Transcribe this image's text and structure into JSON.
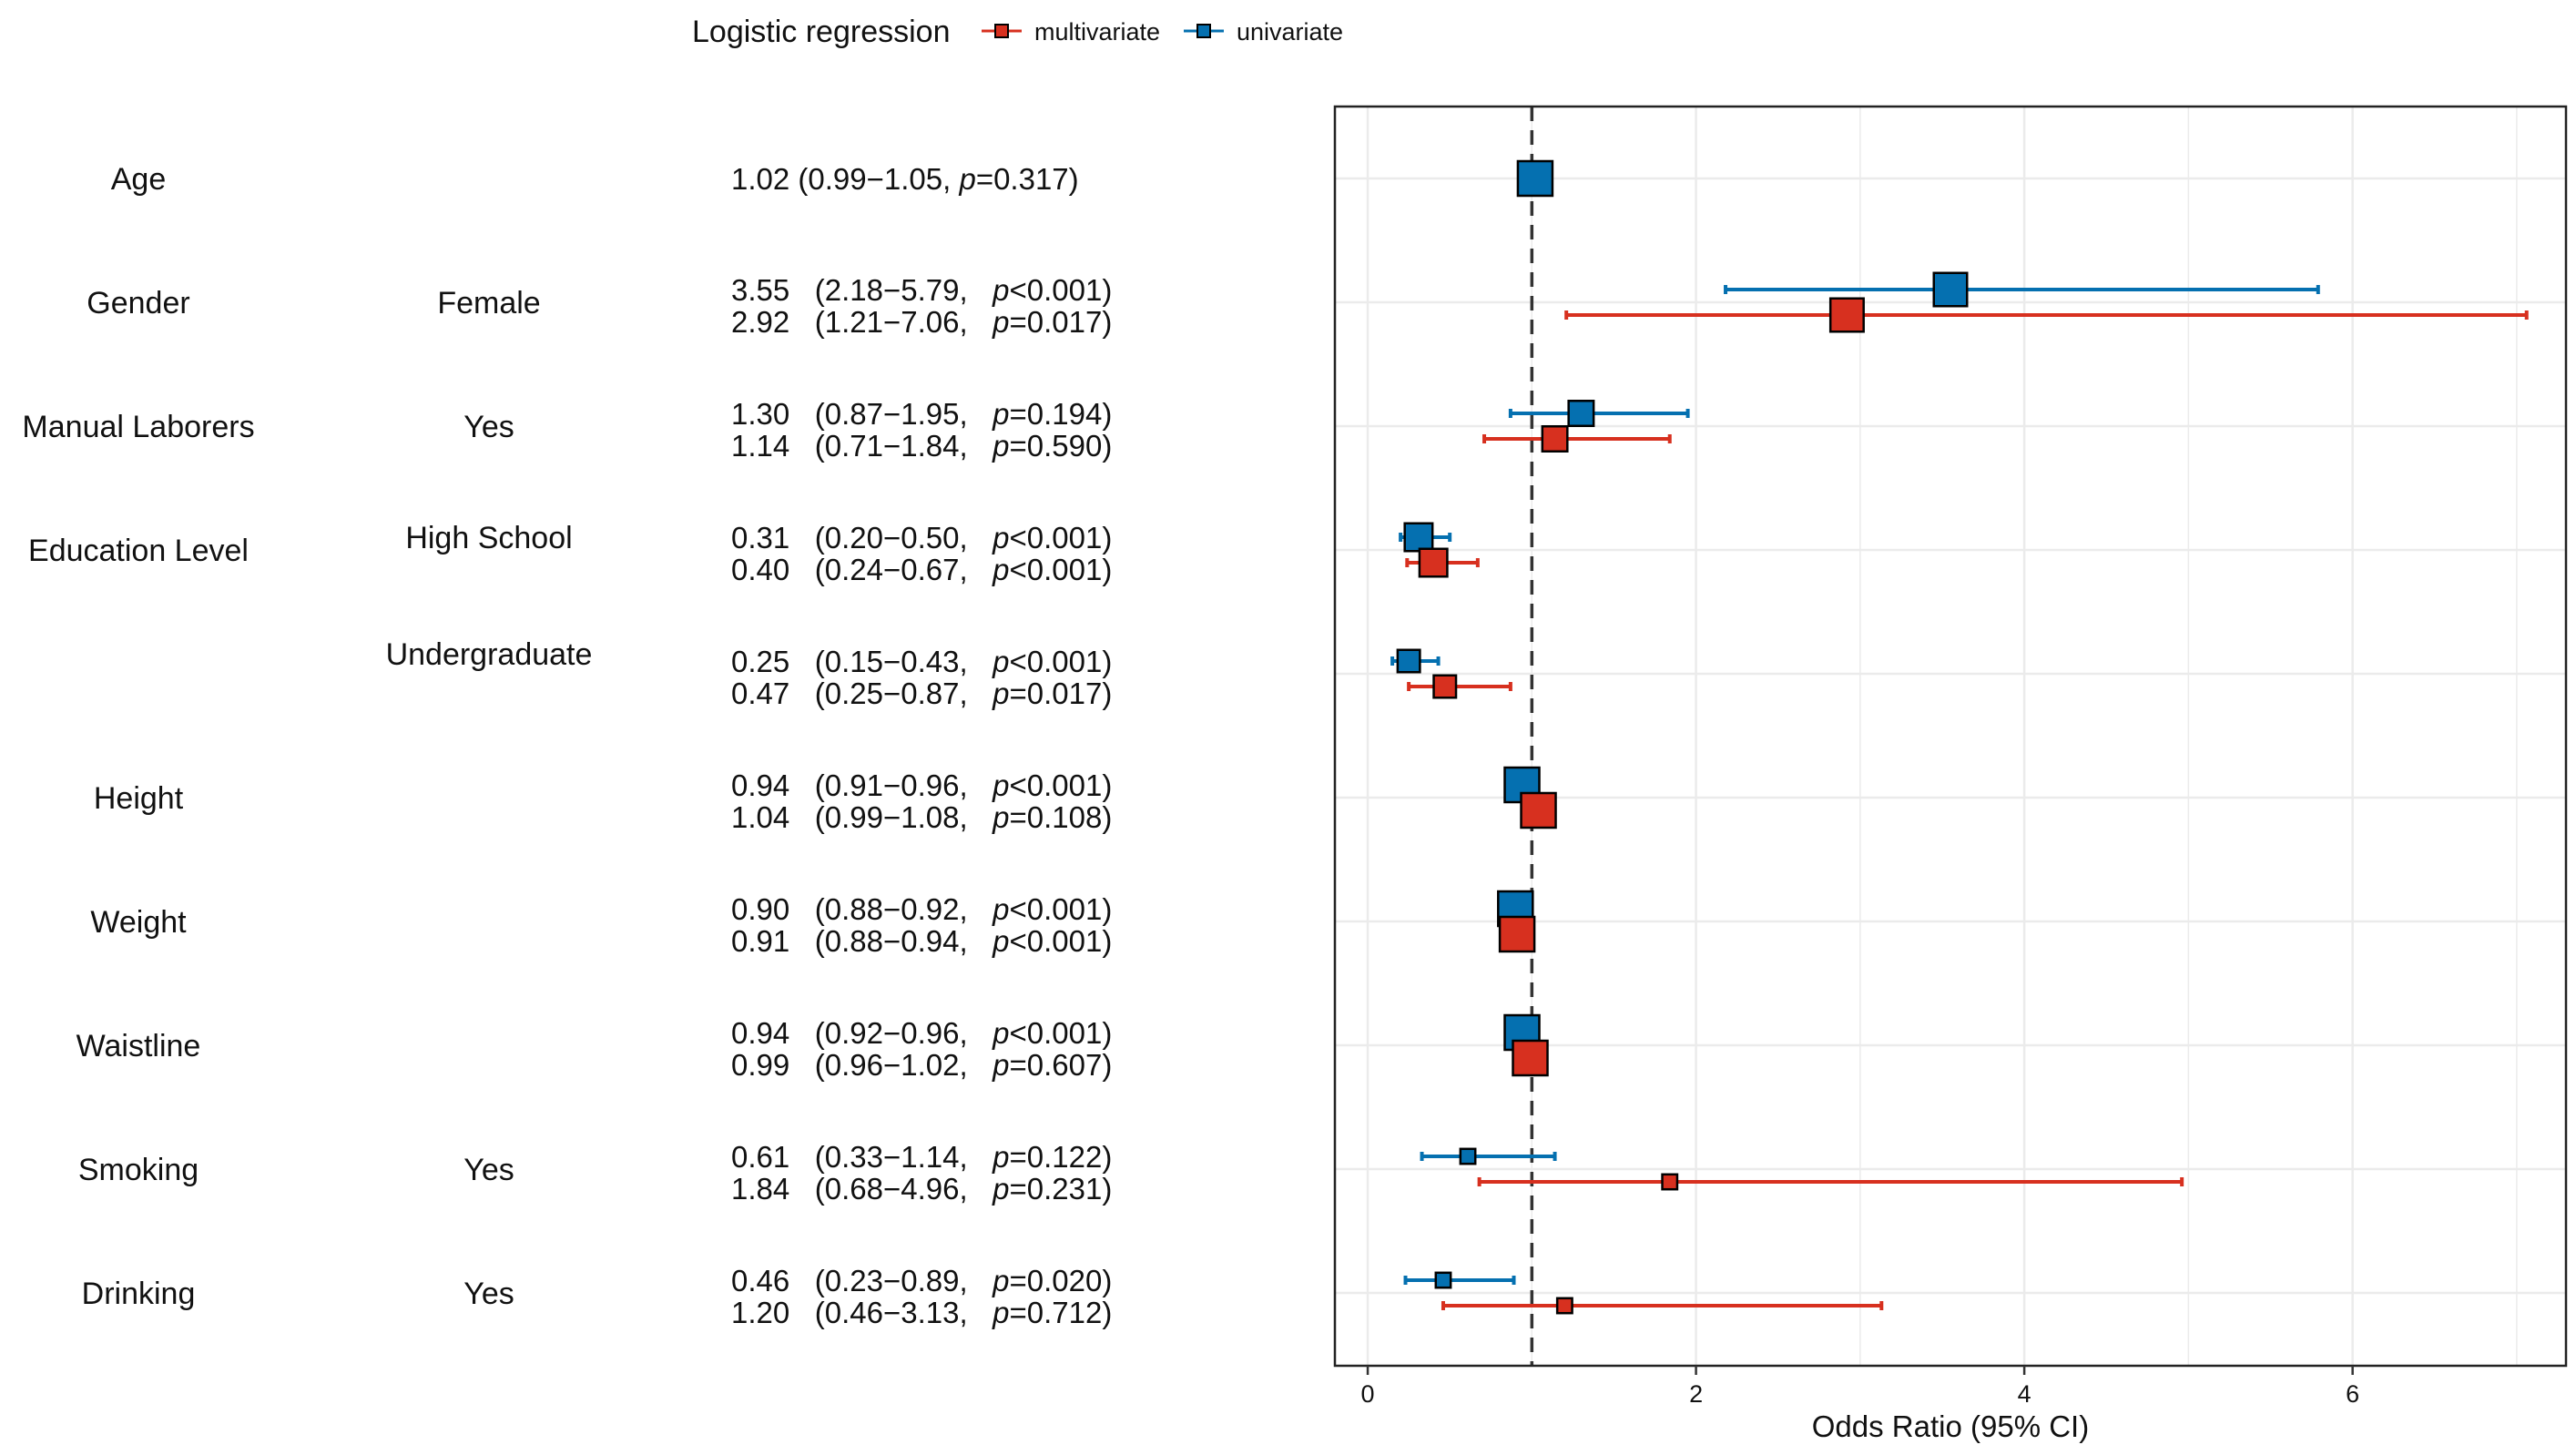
{
  "chart_data": {
    "type": "forest",
    "title": "",
    "legend": {
      "title": "Logistic regression",
      "placement": "top",
      "entries": [
        {
          "name": "multivariate",
          "color": "#D7301F"
        },
        {
          "name": "univariate",
          "color": "#0570B0"
        }
      ]
    },
    "xlabel": "Odds Ratio (95% CI)",
    "xlim": [
      -0.2,
      7.3
    ],
    "xticks": [
      0,
      2,
      4,
      6
    ],
    "reference_line": 1,
    "grid": true,
    "rows": [
      {
        "variable": "Age",
        "level": "",
        "estimates": [
          {
            "series": "univariate",
            "or": 1.02,
            "lo": 0.99,
            "hi": 1.05,
            "text": "1.02 (0.99−1.05, ",
            "p": "=0.317)",
            "weight": 1.0
          }
        ]
      },
      {
        "variable": "Gender",
        "level": "Female",
        "estimates": [
          {
            "series": "univariate",
            "or": 3.55,
            "lo": 2.18,
            "hi": 5.79,
            "text": "3.55   (2.18−5.79,   ",
            "p": "<0.001)",
            "weight": 0.95
          },
          {
            "series": "multivariate",
            "or": 2.92,
            "lo": 1.21,
            "hi": 7.06,
            "text": "2.92   (1.21−7.06,   ",
            "p": "=0.017)",
            "weight": 0.95
          }
        ]
      },
      {
        "variable": "Manual Laborers",
        "level": "Yes",
        "estimates": [
          {
            "series": "univariate",
            "or": 1.3,
            "lo": 0.87,
            "hi": 1.95,
            "text": "1.30   (0.87−1.95,   ",
            "p": "=0.194)",
            "weight": 0.65
          },
          {
            "series": "multivariate",
            "or": 1.14,
            "lo": 0.71,
            "hi": 1.84,
            "text": "1.14   (0.71−1.84,   ",
            "p": "=0.590)",
            "weight": 0.65
          }
        ]
      },
      {
        "variable": "Education Level",
        "level": "High School",
        "estimates": [
          {
            "series": "univariate",
            "or": 0.31,
            "lo": 0.2,
            "hi": 0.5,
            "text": "0.31   (0.20−0.50,   ",
            "p": "<0.001)",
            "weight": 0.75
          },
          {
            "series": "multivariate",
            "or": 0.4,
            "lo": 0.24,
            "hi": 0.67,
            "text": "0.40   (0.24−0.67,   ",
            "p": "<0.001)",
            "weight": 0.75
          }
        ]
      },
      {
        "variable": "",
        "level": "Undergraduate",
        "estimates": [
          {
            "series": "univariate",
            "or": 0.25,
            "lo": 0.15,
            "hi": 0.43,
            "text": "0.25   (0.15−0.43,   ",
            "p": "<0.001)",
            "weight": 0.55
          },
          {
            "series": "multivariate",
            "or": 0.47,
            "lo": 0.25,
            "hi": 0.87,
            "text": "0.47   (0.25−0.87,   ",
            "p": "=0.017)",
            "weight": 0.55
          }
        ]
      },
      {
        "variable": "Height",
        "level": "",
        "estimates": [
          {
            "series": "univariate",
            "or": 0.94,
            "lo": 0.91,
            "hi": 0.96,
            "text": "0.94   (0.91−0.96,   ",
            "p": "<0.001)",
            "weight": 1.0
          },
          {
            "series": "multivariate",
            "or": 1.04,
            "lo": 0.99,
            "hi": 1.08,
            "text": "1.04   (0.99−1.08,   ",
            "p": "=0.108)",
            "weight": 1.0
          }
        ]
      },
      {
        "variable": "Weight",
        "level": "",
        "estimates": [
          {
            "series": "univariate",
            "or": 0.9,
            "lo": 0.88,
            "hi": 0.92,
            "text": "0.90   (0.88−0.92,   ",
            "p": "<0.001)",
            "weight": 1.0
          },
          {
            "series": "multivariate",
            "or": 0.91,
            "lo": 0.88,
            "hi": 0.94,
            "text": "0.91   (0.88−0.94,   ",
            "p": "<0.001)",
            "weight": 1.0
          }
        ]
      },
      {
        "variable": "Waistline",
        "level": "",
        "estimates": [
          {
            "series": "univariate",
            "or": 0.94,
            "lo": 0.92,
            "hi": 0.96,
            "text": "0.94   (0.92−0.96,   ",
            "p": "<0.001)",
            "weight": 1.0
          },
          {
            "series": "multivariate",
            "or": 0.99,
            "lo": 0.96,
            "hi": 1.02,
            "text": "0.99   (0.96−1.02,   ",
            "p": "=0.607)",
            "weight": 1.0
          }
        ]
      },
      {
        "variable": "Smoking",
        "level": "Yes",
        "estimates": [
          {
            "series": "univariate",
            "or": 0.61,
            "lo": 0.33,
            "hi": 1.14,
            "text": "0.61   (0.33−1.14,   ",
            "p": "=0.122)",
            "weight": 0.28
          },
          {
            "series": "multivariate",
            "or": 1.84,
            "lo": 0.68,
            "hi": 4.96,
            "text": "1.84   (0.68−4.96,   ",
            "p": "=0.231)",
            "weight": 0.28
          }
        ]
      },
      {
        "variable": "Drinking",
        "level": "Yes",
        "estimates": [
          {
            "series": "univariate",
            "or": 0.46,
            "lo": 0.23,
            "hi": 0.89,
            "text": "0.46   (0.23−0.89,   ",
            "p": "=0.020)",
            "weight": 0.28
          },
          {
            "series": "multivariate",
            "or": 1.2,
            "lo": 0.46,
            "hi": 3.13,
            "text": "1.20   (0.46−3.13,   ",
            "p": "=0.712)",
            "weight": 0.28
          }
        ]
      }
    ]
  }
}
